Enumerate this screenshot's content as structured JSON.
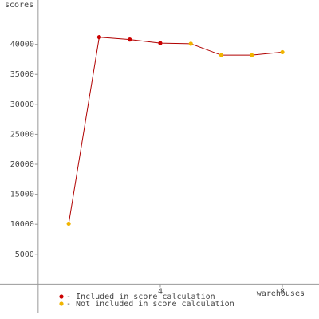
{
  "chart_data": {
    "type": "line",
    "y_label": "scores",
    "x_label": "warehouses",
    "x": [
      1,
      2,
      3,
      4,
      5,
      6,
      7,
      8
    ],
    "values": [
      10100,
      41200,
      40800,
      40200,
      40100,
      38200,
      38200,
      38700
    ],
    "included": [
      false,
      true,
      true,
      true,
      false,
      false,
      false,
      false
    ],
    "line_color": "#b00000",
    "legend": [
      {
        "label": "- Included in score calculation",
        "color": "#cc0000"
      },
      {
        "label": "- Not included in score calculation",
        "color": "#f0b400"
      }
    ],
    "xlim": [
      -1.25,
      9.2
    ],
    "ylim": [
      -5800,
      47400
    ],
    "xticks": [
      4,
      8
    ],
    "yticks": [
      5000,
      10000,
      15000,
      20000,
      25000,
      30000,
      35000,
      40000
    ]
  }
}
